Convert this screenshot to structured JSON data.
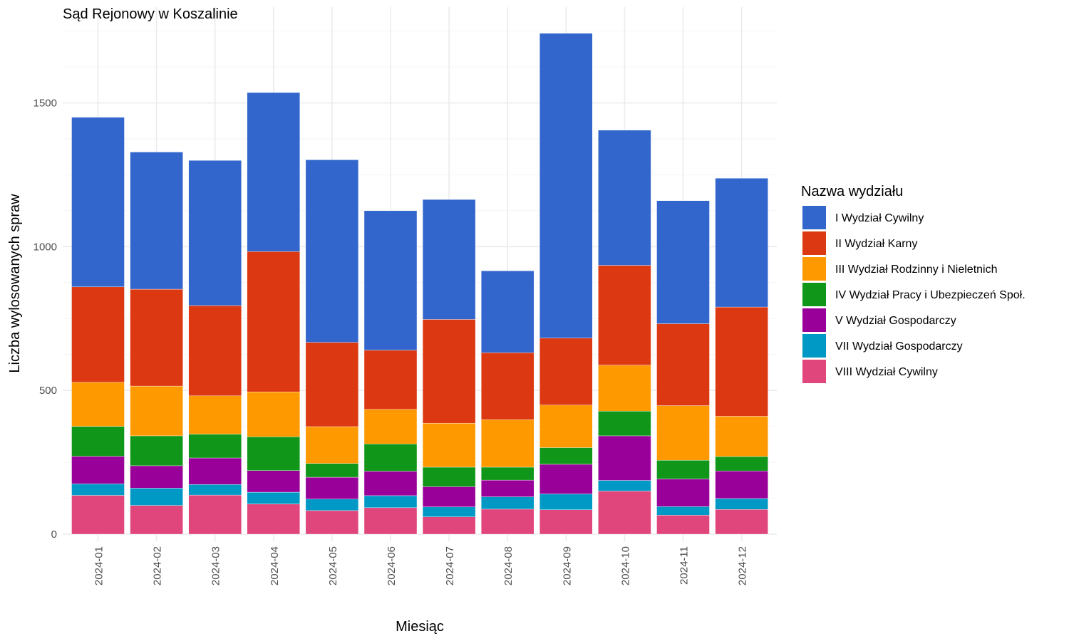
{
  "chart_data": {
    "type": "bar",
    "stacked": true,
    "title": "Sąd Rejonowy w Koszalinie",
    "xlabel": "Miesiąc",
    "ylabel": "Liczba wylosowanych spraw",
    "ylim": [
      0,
      1780
    ],
    "yticks": [
      0,
      500,
      1000,
      1500
    ],
    "grid": true,
    "legend_title": "Nazwa wydziału",
    "legend_position": "right",
    "categories": [
      "2024-01",
      "2024-02",
      "2024-03",
      "2024-04",
      "2024-05",
      "2024-06",
      "2024-07",
      "2024-08",
      "2024-09",
      "2024-10",
      "2024-11",
      "2024-12"
    ],
    "series": [
      {
        "name": "VIII Wydział Cywilny",
        "color": "#E0457B",
        "values": [
          135,
          100,
          136,
          105,
          82,
          92,
          60,
          87,
          85,
          150,
          66,
          86
        ]
      },
      {
        "name": "VII Wydział Gospodarczy",
        "color": "#0099C6",
        "values": [
          40,
          60,
          37,
          41,
          40,
          42,
          35,
          43,
          55,
          37,
          30,
          38
        ]
      },
      {
        "name": "V Wydział Gospodarczy",
        "color": "#990099",
        "values": [
          96,
          78,
          92,
          75,
          76,
          85,
          70,
          58,
          103,
          155,
          96,
          96
        ]
      },
      {
        "name": "IV Wydział Pracy i Ubezpieczeń Społ.",
        "color": "#109618",
        "values": [
          104,
          104,
          83,
          118,
          48,
          95,
          68,
          45,
          58,
          86,
          65,
          50
        ]
      },
      {
        "name": "III Wydział Rodzinny i Nieletnich",
        "color": "#FF9900",
        "values": [
          153,
          173,
          133,
          156,
          128,
          120,
          153,
          165,
          148,
          160,
          190,
          140
        ]
      },
      {
        "name": "II Wydział Karny",
        "color": "#DC3912",
        "values": [
          332,
          337,
          314,
          488,
          293,
          206,
          361,
          233,
          233,
          347,
          285,
          380
        ]
      },
      {
        "name": "I Wydział Cywilny",
        "color": "#3366CC",
        "values": [
          590,
          477,
          505,
          553,
          635,
          485,
          417,
          285,
          1060,
          470,
          428,
          448
        ]
      }
    ],
    "legend_order": [
      "I Wydział Cywilny",
      "II Wydział Karny",
      "III Wydział Rodzinny i Nieletnich",
      "IV Wydział Pracy i Ubezpieczeń Społ.",
      "V Wydział Gospodarczy",
      "VII Wydział Gospodarczy",
      "VIII Wydział Cywilny"
    ]
  }
}
